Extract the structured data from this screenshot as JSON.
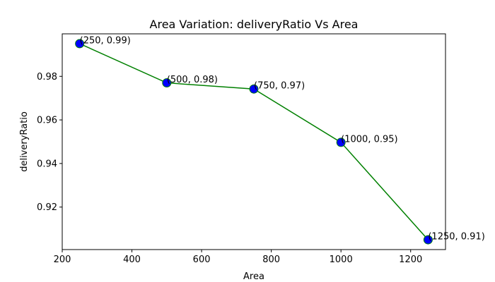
{
  "chart_data": {
    "type": "line",
    "title": "Area Variation: deliveryRatio Vs Area",
    "xlabel": "Area",
    "ylabel": "deliveryRatio",
    "xlim": [
      200,
      1300
    ],
    "ylim": [
      0.9005,
      0.9995
    ],
    "xticks": [
      200,
      400,
      600,
      800,
      1000,
      1200
    ],
    "yticks": [
      0.92,
      0.94,
      0.96,
      0.98
    ],
    "xtick_labels": [
      "200",
      "400",
      "600",
      "800",
      "1000",
      "1200"
    ],
    "ytick_labels": [
      "0.92",
      "0.94",
      "0.96",
      "0.98"
    ],
    "grid": false,
    "series": [
      {
        "x": [
          250,
          500,
          750,
          1000,
          1250
        ],
        "y": [
          0.995,
          0.977,
          0.9742,
          0.9497,
          0.905
        ],
        "line_color": "#008000",
        "marker_face": "#0000ff",
        "marker_edge": "#008000"
      }
    ],
    "annotations": [
      "(250, 0.99)",
      "(500, 0.98)",
      "(750, 0.97)",
      "(1000, 0.95)",
      "(1250, 0.91)"
    ]
  }
}
